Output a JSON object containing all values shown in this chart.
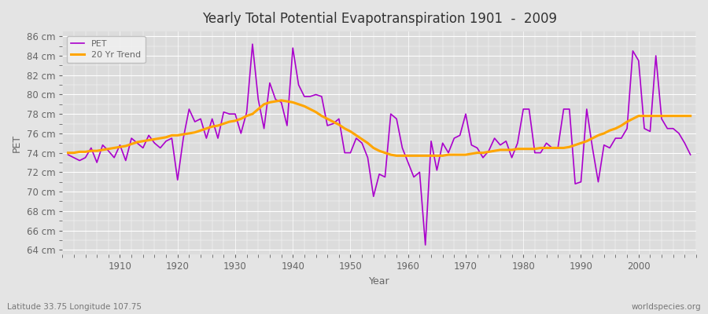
{
  "title": "Yearly Total Potential Evapotranspiration 1901  -  2009",
  "xlabel": "Year",
  "ylabel": "PET",
  "footnote_left": "Latitude 33.75 Longitude 107.75",
  "footnote_right": "worldspecies.org",
  "legend_pet": "PET",
  "legend_trend": "20 Yr Trend",
  "pet_color": "#AA00CC",
  "trend_color": "#FFA500",
  "background_color": "#E4E4E4",
  "plot_bg_color": "#DCDCDC",
  "text_color": "#666666",
  "footnote_color": "#777777",
  "ylim": [
    63.5,
    86.5
  ],
  "yticks": [
    64,
    66,
    68,
    70,
    72,
    74,
    76,
    78,
    80,
    82,
    84,
    86
  ],
  "xticks": [
    1910,
    1920,
    1930,
    1940,
    1950,
    1960,
    1970,
    1980,
    1990,
    2000
  ],
  "xlim": [
    1900,
    2010
  ],
  "years": [
    1901,
    1902,
    1903,
    1904,
    1905,
    1906,
    1907,
    1908,
    1909,
    1910,
    1911,
    1912,
    1913,
    1914,
    1915,
    1916,
    1917,
    1918,
    1919,
    1920,
    1921,
    1922,
    1923,
    1924,
    1925,
    1926,
    1927,
    1928,
    1929,
    1930,
    1931,
    1932,
    1933,
    1934,
    1935,
    1936,
    1937,
    1938,
    1939,
    1940,
    1941,
    1942,
    1943,
    1944,
    1945,
    1946,
    1947,
    1948,
    1949,
    1950,
    1951,
    1952,
    1953,
    1954,
    1955,
    1956,
    1957,
    1958,
    1959,
    1960,
    1961,
    1962,
    1963,
    1964,
    1965,
    1966,
    1967,
    1968,
    1969,
    1970,
    1971,
    1972,
    1973,
    1974,
    1975,
    1976,
    1977,
    1978,
    1979,
    1980,
    1981,
    1982,
    1983,
    1984,
    1985,
    1986,
    1987,
    1988,
    1989,
    1990,
    1991,
    1992,
    1993,
    1994,
    1995,
    1996,
    1997,
    1998,
    1999,
    2000,
    2001,
    2002,
    2003,
    2004,
    2005,
    2006,
    2007,
    2008,
    2009
  ],
  "pet_values": [
    73.8,
    73.5,
    73.2,
    73.5,
    74.5,
    73.0,
    74.8,
    74.2,
    73.5,
    74.8,
    73.2,
    75.5,
    75.0,
    74.5,
    75.8,
    75.0,
    74.5,
    75.2,
    75.5,
    71.2,
    75.5,
    78.5,
    77.2,
    77.5,
    75.5,
    77.5,
    75.5,
    78.2,
    78.0,
    78.0,
    76.0,
    78.2,
    85.2,
    79.5,
    76.5,
    81.2,
    79.5,
    79.2,
    76.8,
    84.8,
    81.0,
    79.8,
    79.8,
    80.0,
    79.8,
    76.8,
    77.0,
    77.5,
    74.0,
    74.0,
    75.5,
    75.0,
    73.5,
    69.5,
    71.8,
    71.5,
    78.0,
    77.5,
    74.5,
    73.0,
    71.5,
    72.0,
    64.5,
    75.2,
    72.2,
    75.0,
    74.0,
    75.5,
    75.8,
    78.0,
    74.8,
    74.5,
    73.5,
    74.2,
    75.5,
    74.8,
    75.2,
    73.5,
    75.0,
    78.5,
    78.5,
    74.0,
    74.0,
    75.0,
    74.5,
    74.5,
    78.5,
    78.5,
    70.8,
    71.0,
    78.5,
    74.5,
    71.0,
    74.8,
    74.5,
    75.5,
    75.5,
    76.5,
    84.5,
    83.5,
    76.5,
    76.2,
    84.0,
    77.5,
    76.5,
    76.5,
    76.0,
    75.0,
    73.8
  ],
  "trend_values": [
    74.0,
    74.0,
    74.1,
    74.1,
    74.2,
    74.2,
    74.3,
    74.4,
    74.5,
    74.6,
    74.7,
    74.9,
    75.1,
    75.2,
    75.3,
    75.4,
    75.5,
    75.6,
    75.8,
    75.8,
    75.9,
    76.0,
    76.1,
    76.3,
    76.5,
    76.7,
    76.8,
    77.0,
    77.2,
    77.3,
    77.5,
    77.8,
    78.0,
    78.5,
    79.0,
    79.2,
    79.3,
    79.4,
    79.3,
    79.2,
    79.0,
    78.8,
    78.5,
    78.2,
    77.8,
    77.5,
    77.2,
    76.9,
    76.5,
    76.2,
    75.8,
    75.4,
    75.0,
    74.5,
    74.2,
    74.0,
    73.8,
    73.7,
    73.7,
    73.7,
    73.7,
    73.7,
    73.7,
    73.7,
    73.7,
    73.7,
    73.8,
    73.8,
    73.8,
    73.8,
    73.9,
    74.0,
    74.0,
    74.1,
    74.2,
    74.3,
    74.3,
    74.3,
    74.4,
    74.4,
    74.4,
    74.4,
    74.5,
    74.5,
    74.5,
    74.5,
    74.5,
    74.6,
    74.8,
    75.0,
    75.2,
    75.5,
    75.8,
    76.0,
    76.3,
    76.5,
    76.8,
    77.2,
    77.5,
    77.8,
    77.8,
    77.8,
    77.8,
    77.8,
    77.8,
    77.8,
    77.8,
    77.8,
    77.8
  ]
}
